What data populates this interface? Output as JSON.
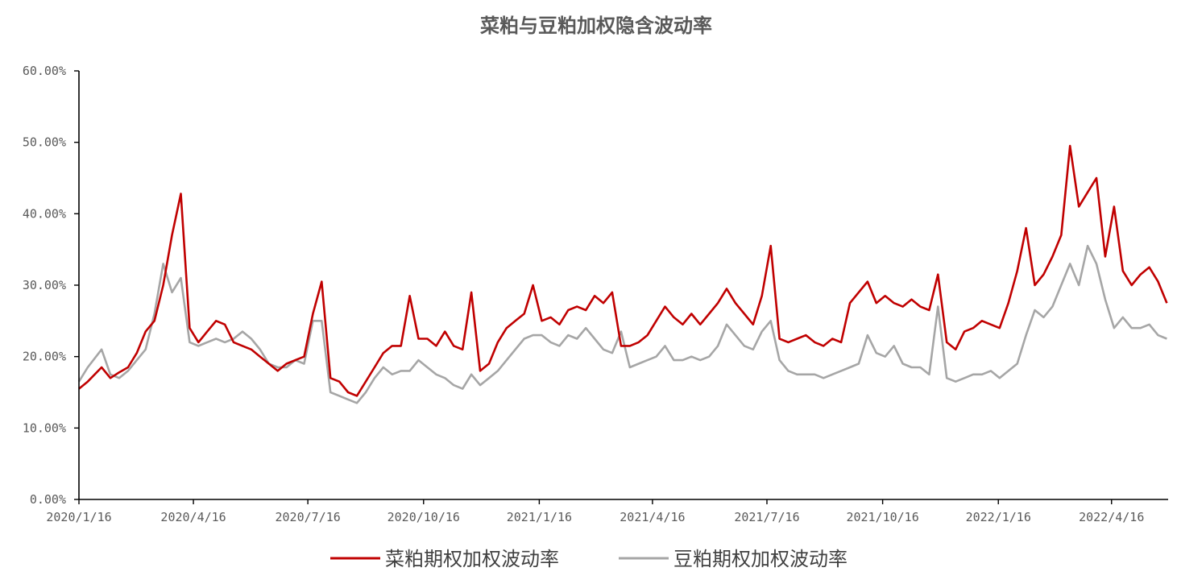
{
  "chart_data": {
    "type": "line",
    "title": "菜粕与豆粕加权隐含波动率",
    "xlabel": "",
    "ylabel": "",
    "ylim": [
      0,
      60
    ],
    "y_ticks": [
      "0.00%",
      "10.00%",
      "20.00%",
      "30.00%",
      "40.00%",
      "50.00%",
      "60.00%"
    ],
    "x_ticks": [
      "2020/1/16",
      "2020/4/16",
      "2020/7/16",
      "2020/10/16",
      "2021/1/16",
      "2021/4/16",
      "2021/7/16",
      "2021/10/16",
      "2022/1/16",
      "2022/4/16"
    ],
    "grid": false,
    "legend": "bottom",
    "x": [
      "2020-01-16",
      "2020-01-23",
      "2020-02-03",
      "2020-02-10",
      "2020-02-17",
      "2020-02-24",
      "2020-03-02",
      "2020-03-09",
      "2020-03-16",
      "2020-03-23",
      "2020-03-30",
      "2020-04-06",
      "2020-04-13",
      "2020-04-20",
      "2020-04-27",
      "2020-05-04",
      "2020-05-11",
      "2020-05-18",
      "2020-05-25",
      "2020-06-01",
      "2020-06-08",
      "2020-06-15",
      "2020-06-22",
      "2020-06-29",
      "2020-07-06",
      "2020-07-13",
      "2020-07-20",
      "2020-07-27",
      "2020-08-03",
      "2020-08-10",
      "2020-08-17",
      "2020-08-24",
      "2020-08-31",
      "2020-09-07",
      "2020-09-14",
      "2020-09-21",
      "2020-09-28",
      "2020-10-05",
      "2020-10-12",
      "2020-10-19",
      "2020-10-26",
      "2020-11-02",
      "2020-11-09",
      "2020-11-16",
      "2020-11-23",
      "2020-11-30",
      "2020-12-07",
      "2020-12-14",
      "2020-12-21",
      "2020-12-28",
      "2021-01-04",
      "2021-01-11",
      "2021-01-18",
      "2021-01-25",
      "2021-02-01",
      "2021-02-08",
      "2021-02-15",
      "2021-02-22",
      "2021-03-01",
      "2021-03-08",
      "2021-03-15",
      "2021-03-22",
      "2021-03-29",
      "2021-04-05",
      "2021-04-12",
      "2021-04-19",
      "2021-04-26",
      "2021-05-03",
      "2021-05-10",
      "2021-05-17",
      "2021-05-24",
      "2021-05-31",
      "2021-06-07",
      "2021-06-14",
      "2021-06-21",
      "2021-06-28",
      "2021-07-05",
      "2021-07-12",
      "2021-07-19",
      "2021-07-26",
      "2021-08-02",
      "2021-08-09",
      "2021-08-16",
      "2021-08-23",
      "2021-08-30",
      "2021-09-06",
      "2021-09-13",
      "2021-09-20",
      "2021-09-27",
      "2021-10-04",
      "2021-10-11",
      "2021-10-18",
      "2021-10-25",
      "2021-11-01",
      "2021-11-08",
      "2021-11-15",
      "2021-11-22",
      "2021-11-29",
      "2021-12-06",
      "2021-12-13",
      "2021-12-20",
      "2021-12-27",
      "2022-01-03",
      "2022-01-10",
      "2022-01-17",
      "2022-01-24",
      "2022-01-31",
      "2022-02-07",
      "2022-02-14",
      "2022-02-21",
      "2022-02-28",
      "2022-03-07",
      "2022-03-14",
      "2022-03-21",
      "2022-03-28",
      "2022-04-04",
      "2022-04-11",
      "2022-04-18",
      "2022-04-25",
      "2022-05-02",
      "2022-05-09",
      "2022-05-16",
      "2022-05-23",
      "2022-05-30"
    ],
    "series": [
      {
        "name": "菜粕期权加权波动率",
        "color": "#C00000",
        "values": [
          15.5,
          16.5,
          18.5,
          17.0,
          17.8,
          18.5,
          20.5,
          23.5,
          25.0,
          30.0,
          37.0,
          42.8,
          24.0,
          22.0,
          23.5,
          25.0,
          24.5,
          22.0,
          21.5,
          21.0,
          20.0,
          19.0,
          18.0,
          19.0,
          19.5,
          20.0,
          26.0,
          30.5,
          17.0,
          16.5,
          15.0,
          14.5,
          16.5,
          18.5,
          20.5,
          21.5,
          21.5,
          28.5,
          22.5,
          22.5,
          21.5,
          23.5,
          21.5,
          21.0,
          29.0,
          18.0,
          19.0,
          22.0,
          24.0,
          25.0,
          26.0,
          30.0,
          25.0,
          25.5,
          24.5,
          26.5,
          27.0,
          26.5,
          28.5,
          27.5,
          29.0,
          21.5,
          21.5,
          22.0,
          23.0,
          25.0,
          27.0,
          25.5,
          24.5,
          26.0,
          24.5,
          26.0,
          27.5,
          29.5,
          27.5,
          26.0,
          24.5,
          28.5,
          35.5,
          22.5,
          22.0,
          22.5,
          23.0,
          22.0,
          21.5,
          22.5,
          22.0,
          27.5,
          29.0,
          30.5,
          27.5,
          28.5,
          27.5,
          27.0,
          28.0,
          27.0,
          26.5,
          31.5,
          22.0,
          21.0,
          23.5,
          24.0,
          25.0,
          24.5,
          24.0,
          27.5,
          32.0,
          38.0,
          30.0,
          31.5,
          34.0,
          37.0,
          49.5,
          41.0,
          43.0,
          45.0,
          34.0,
          41.0,
          32.0,
          30.0,
          31.5,
          32.5,
          30.5,
          27.5
        ]
      },
      {
        "name": "豆粕期权加权波动率",
        "color": "#A6A6A6",
        "values": [
          16.5,
          18.5,
          21.0,
          17.5,
          17.0,
          18.0,
          19.5,
          21.0,
          26.0,
          33.0,
          29.0,
          31.0,
          22.0,
          21.5,
          22.0,
          22.5,
          22.0,
          22.5,
          23.5,
          22.5,
          21.0,
          19.0,
          18.5,
          18.5,
          19.5,
          19.0,
          25.0,
          25.0,
          15.0,
          14.5,
          14.0,
          13.5,
          15.0,
          17.0,
          18.5,
          17.5,
          18.0,
          18.0,
          19.5,
          18.5,
          17.5,
          17.0,
          16.0,
          15.5,
          17.5,
          16.0,
          17.0,
          18.0,
          19.5,
          21.0,
          22.5,
          23.0,
          23.0,
          22.0,
          21.5,
          23.0,
          22.5,
          24.0,
          22.5,
          21.0,
          20.5,
          23.5,
          18.5,
          19.0,
          19.5,
          20.0,
          21.5,
          19.5,
          19.5,
          20.0,
          19.5,
          20.0,
          21.5,
          24.5,
          23.0,
          21.5,
          21.0,
          23.5,
          25.0,
          19.5,
          18.0,
          17.5,
          17.5,
          17.5,
          17.0,
          17.5,
          18.0,
          18.5,
          19.0,
          23.0,
          20.5,
          20.0,
          21.5,
          19.0,
          18.5,
          18.5,
          17.5,
          27.0,
          17.0,
          16.5,
          17.0,
          17.5,
          17.5,
          18.0,
          17.0,
          18.0,
          19.0,
          23.0,
          26.5,
          25.5,
          27.0,
          30.0,
          33.0,
          30.0,
          35.5,
          33.0,
          28.0,
          24.0,
          25.5,
          24.0,
          24.0,
          24.5,
          23.0,
          22.5
        ]
      }
    ]
  }
}
